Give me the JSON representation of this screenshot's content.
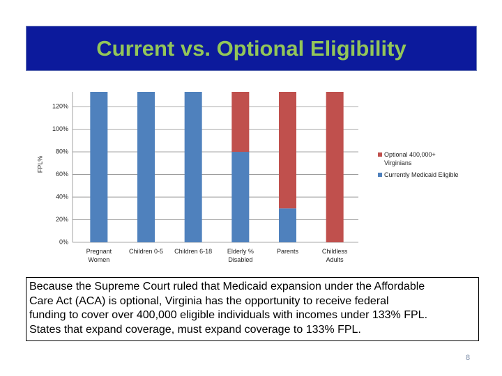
{
  "title": "Current vs. Optional Eligibility",
  "chart_data": {
    "type": "stacked_bar",
    "ylabel": "FPL%",
    "categories": [
      "Pregnant Women",
      "Children 0-5",
      "Children 6-18",
      "Elderly % Disabled",
      "Parents",
      "Childless Adults"
    ],
    "series": [
      {
        "name": "Currently Medicaid Eligible",
        "color": "#4f81bd",
        "values": [
          133,
          133,
          133,
          80,
          30,
          0
        ]
      },
      {
        "name": "Optional 400,000+ Virginians",
        "color": "#c0504d",
        "values": [
          0,
          0,
          0,
          53,
          103,
          133
        ]
      }
    ],
    "ylim": [
      0,
      133
    ],
    "yticks": [
      {
        "value": 0,
        "label": "0%"
      },
      {
        "value": 20,
        "label": "20%"
      },
      {
        "value": 40,
        "label": "40%"
      },
      {
        "value": 60,
        "label": "60%"
      },
      {
        "value": 80,
        "label": "80%"
      },
      {
        "value": 100,
        "label": "100%"
      },
      {
        "value": 120,
        "label": "120%"
      }
    ],
    "grid": true,
    "legend": "right"
  },
  "text_lines": [
    "Because the Supreme Court ruled that Medicaid expansion under the Affordable",
    "Care Act (ACA) is optional,  Virginia has the opportunity to receive federal",
    "funding to cover over 400,000 eligible individuals with incomes under 133% FPL.",
    "States that expand coverage, must expand coverage to 133% FPL."
  ],
  "page_number": "8"
}
